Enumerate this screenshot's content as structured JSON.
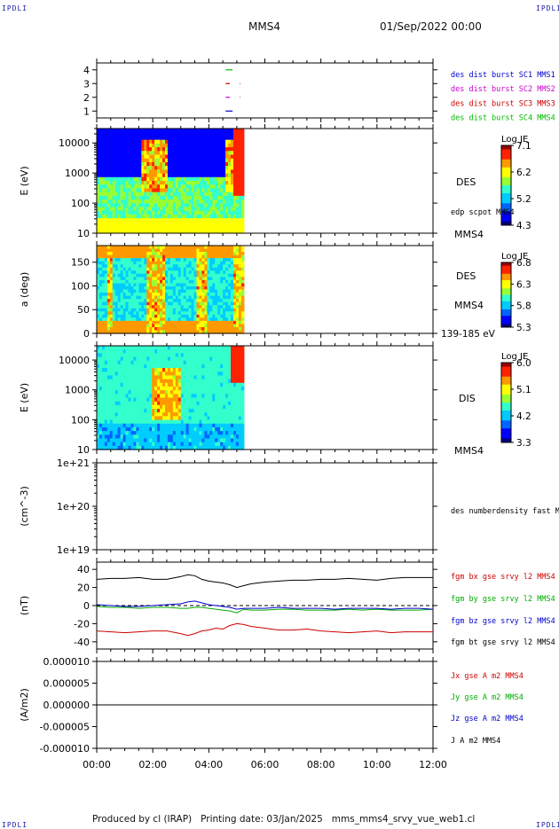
{
  "corners": {
    "tl": "IPDLI",
    "tr": "IPDLI",
    "bl": "IPDLI",
    "br": "IPDLI"
  },
  "header": {
    "spacecraft": "MMS4",
    "date": "01/Sep/2022 00:00"
  },
  "footer": {
    "text": "Produced by cl (IRAP)   Printing date: 03/Jan/2025   mms_mms4_srvy_vue_web1.cl"
  },
  "chart_data": [
    {
      "id": "burst",
      "type": "line",
      "ylim": [
        0.5,
        4.5
      ],
      "yticks": [
        "1",
        "2",
        "3",
        "4"
      ],
      "legend": [
        {
          "label": "des dist burst SC1 MMS1",
          "color": "#0000cc"
        },
        {
          "label": "des dist burst SC2 MMS2",
          "color": "#cc00cc"
        },
        {
          "label": "des dist burst SC3 MMS3",
          "color": "#cc0000"
        },
        {
          "label": "des dist burst SC4 MMS4",
          "color": "#00bb00"
        }
      ]
    },
    {
      "id": "des_energy",
      "type": "heatmap",
      "ylabel": "E (eV)",
      "log_y": true,
      "ylim": [
        10,
        30000
      ],
      "yticks": [
        "10",
        "100",
        "1000",
        "10000"
      ],
      "data_end_hour": 5.25,
      "species": "DES",
      "overlay": "edp scpot MMS4",
      "spacecraft": "MMS4",
      "colorbar": {
        "title": "Log JE",
        "ticks": [
          "7.1",
          "6.2",
          "5.2",
          "4.3"
        ]
      }
    },
    {
      "id": "des_pitch",
      "type": "heatmap",
      "ylabel": "a (deg)",
      "ylim": [
        0,
        185
      ],
      "yticks": [
        "0",
        "50",
        "100",
        "150"
      ],
      "data_end_hour": 5.25,
      "species": "DES",
      "spacecraft": "MMS4",
      "energy_range": "139-185 eV",
      "colorbar": {
        "title": "Log JE",
        "ticks": [
          "6.8",
          "6.3",
          "5.8",
          "5.3"
        ]
      }
    },
    {
      "id": "dis_energy",
      "type": "heatmap",
      "ylabel": "E (eV)",
      "log_y": true,
      "ylim": [
        10,
        30000
      ],
      "yticks": [
        "10",
        "100",
        "1000",
        "10000"
      ],
      "data_end_hour": 5.25,
      "species": "DIS",
      "spacecraft": "MMS4",
      "colorbar": {
        "title": "Log JE",
        "ticks": [
          "6.0",
          "5.1",
          "4.2",
          "3.3"
        ]
      }
    },
    {
      "id": "density",
      "type": "line",
      "ylabel": "(cm^-3)",
      "log_y": true,
      "ylim": [
        1e+19,
        1e+21
      ],
      "yticks": [
        "1e+19",
        "1e+20",
        "1e+21"
      ],
      "legend": [
        {
          "label": "des numberdensity fast M",
          "color": "#000000"
        }
      ]
    },
    {
      "id": "fgm",
      "type": "line",
      "ylabel": "(nT)",
      "ylim": [
        -48,
        48
      ],
      "yticks": [
        "-40",
        "-20",
        "0",
        "20",
        "40"
      ],
      "x": [
        0,
        0.5,
        1,
        1.5,
        2,
        2.5,
        3,
        3.25,
        3.5,
        3.75,
        4,
        4.25,
        4.5,
        4.75,
        5,
        5.25,
        5.5,
        6,
        6.5,
        7,
        7.5,
        8,
        8.5,
        9,
        9.5,
        10,
        10.5,
        11,
        11.5,
        12
      ],
      "series": [
        {
          "name": "fgm bx gse srvy l2 MMS4",
          "color": "#cc0000",
          "values": [
            -28,
            -29,
            -30,
            -29,
            -28,
            -28,
            -31,
            -33,
            -31,
            -28,
            -27,
            -25,
            -26,
            -22,
            -20,
            -21,
            -23,
            -25,
            -27,
            -27,
            -26,
            -28,
            -29,
            -30,
            -29,
            -28,
            -30,
            -29,
            -29,
            -29
          ]
        },
        {
          "name": "fgm by gse srvy l2 MMS4",
          "color": "#00aa00",
          "values": [
            -1,
            -2,
            -2,
            -3,
            -2,
            -2,
            -3,
            -3,
            -2,
            -2,
            -3,
            -4,
            -5,
            -6,
            -8,
            -4,
            -5,
            -5,
            -4,
            -4,
            -5,
            -5,
            -5,
            -4,
            -5,
            -4,
            -5,
            -5,
            -5,
            -4
          ]
        },
        {
          "name": "fgm bz gse srvy l2 MMS4",
          "color": "#0000cc",
          "values": [
            1,
            0,
            -1,
            -1,
            0,
            1,
            2,
            4,
            5,
            3,
            1,
            0,
            -1,
            -2,
            -4,
            -3,
            -3,
            -3,
            -2,
            -3,
            -3,
            -3,
            -4,
            -3,
            -3,
            -3,
            -4,
            -3,
            -3,
            -4
          ]
        },
        {
          "name": "fgm bt gse srvy l2 MMS4",
          "color": "#000000",
          "values": [
            29,
            30,
            30,
            31,
            29,
            29,
            32,
            34,
            33,
            29,
            27,
            26,
            25,
            23,
            20,
            22,
            24,
            26,
            27,
            28,
            28,
            29,
            29,
            30,
            29,
            28,
            30,
            31,
            31,
            31
          ]
        }
      ]
    },
    {
      "id": "current",
      "type": "line",
      "ylabel": "(A/m2)",
      "ylim": [
        -1e-05,
        1e-05
      ],
      "yticks": [
        "-0.000010",
        "-0.000005",
        "0.000000",
        "0.000005",
        "0.000010"
      ],
      "legend": [
        {
          "label": "Jx gse A m2 MMS4",
          "color": "#cc0000"
        },
        {
          "label": "Jy gse A m2 MMS4",
          "color": "#00aa00"
        },
        {
          "label": "Jz gse A m2 MMS4",
          "color": "#0000cc"
        },
        {
          "label": "J A m2 MMS4",
          "color": "#000000"
        }
      ]
    }
  ],
  "xaxis": {
    "ticks": [
      "00:00",
      "02:00",
      "04:00",
      "06:00",
      "08:00",
      "10:00",
      "12:00"
    ],
    "xlim": [
      0,
      12
    ]
  }
}
